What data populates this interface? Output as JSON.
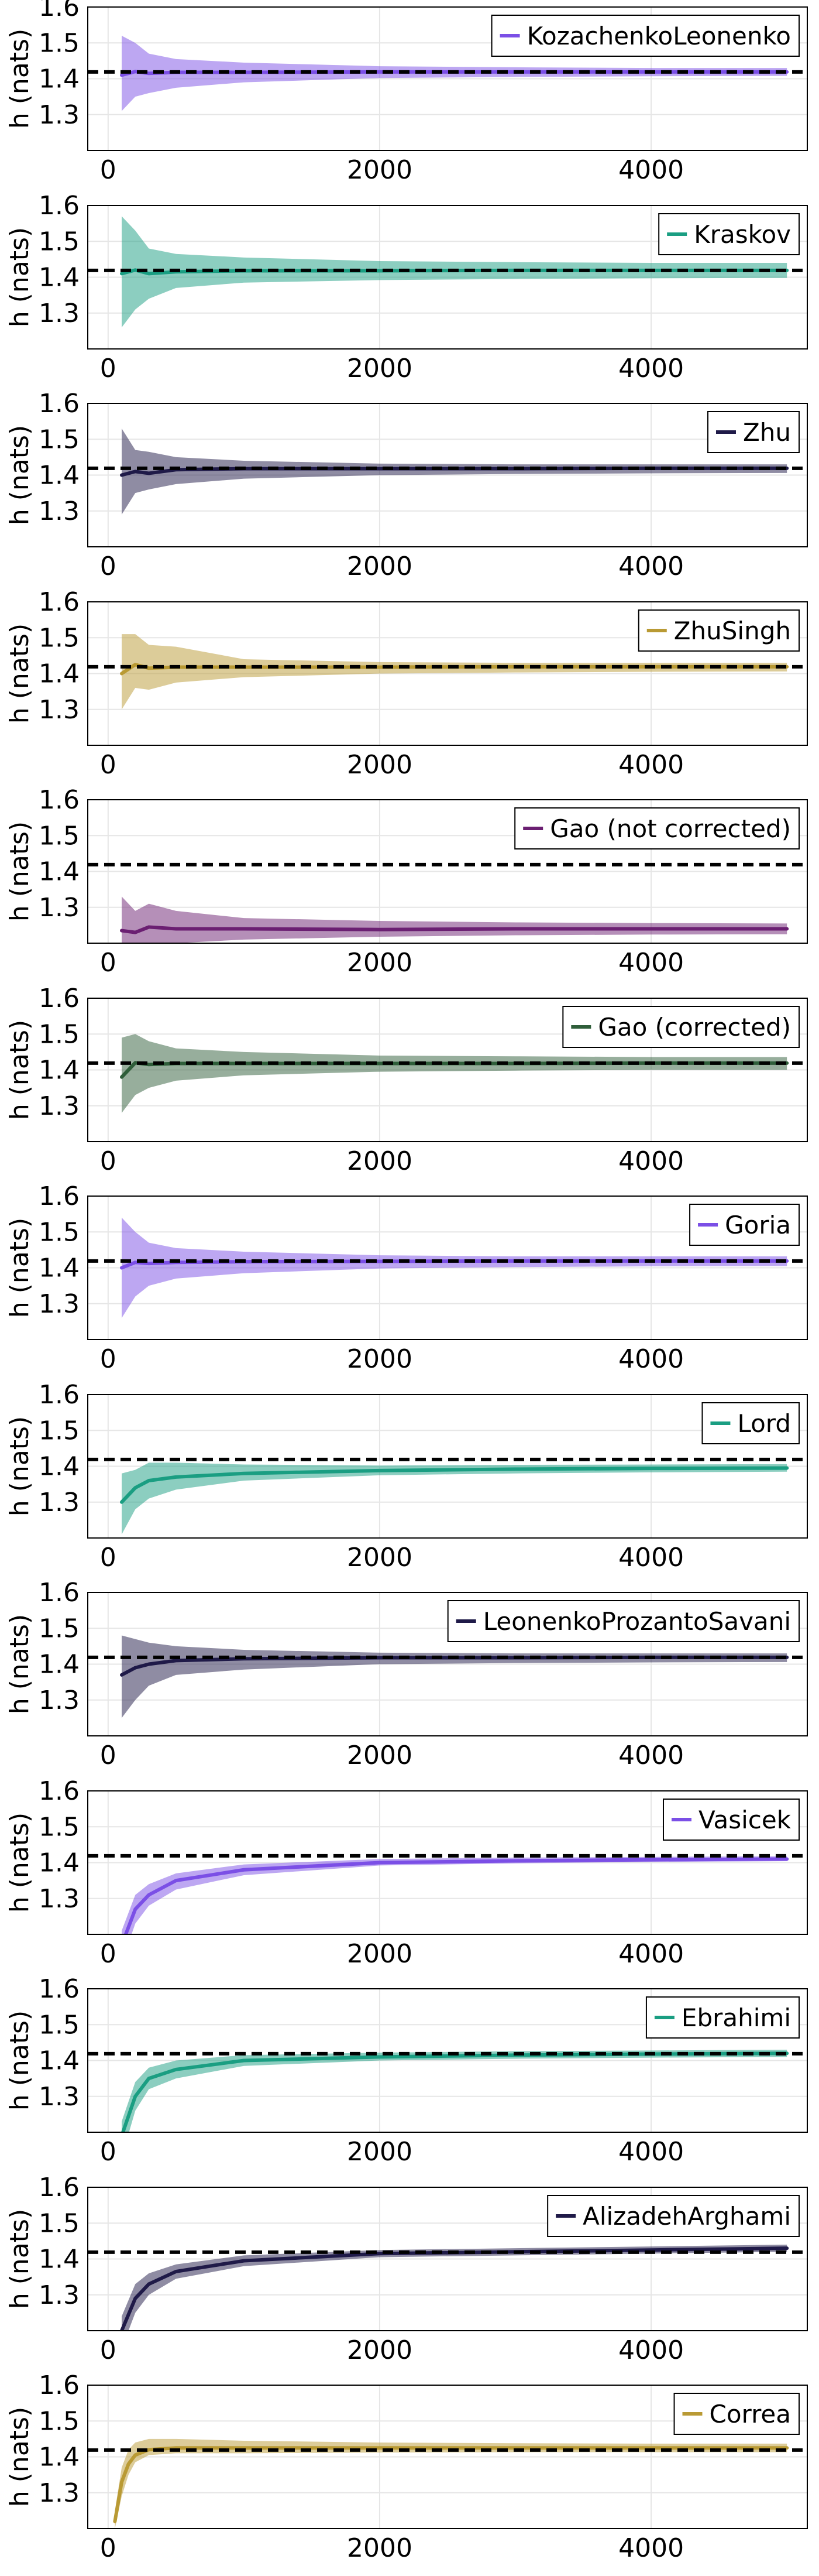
{
  "figure": {
    "ylabel": "h (nats)",
    "reference_line_value": 1.4189,
    "colors": {
      "purple": "#7b4fe6",
      "teal": "#1a9e82",
      "navy": "#1f1a48",
      "gold": "#b99a34",
      "plum": "#6b1f72",
      "green": "#2f5e3a"
    }
  },
  "chart_data": [
    {
      "type": "line",
      "name": "KozachenkoLeonenko",
      "color": "#7b4fe6",
      "ylim": [
        1.2,
        1.6
      ],
      "xlim": [
        -150,
        5150
      ],
      "xticks": [
        0,
        2000,
        4000
      ],
      "yticks": [
        1.3,
        1.4,
        1.5,
        1.6
      ],
      "reference": 1.4189,
      "x": [
        100,
        200,
        300,
        500,
        1000,
        2000,
        3000,
        4000,
        5000
      ],
      "mean": [
        1.41,
        1.42,
        1.415,
        1.418,
        1.418,
        1.419,
        1.419,
        1.419,
        1.419
      ],
      "lower": [
        1.31,
        1.35,
        1.36,
        1.375,
        1.39,
        1.402,
        1.405,
        1.407,
        1.408
      ],
      "upper": [
        1.52,
        1.5,
        1.47,
        1.455,
        1.445,
        1.435,
        1.432,
        1.43,
        1.43
      ]
    },
    {
      "type": "line",
      "name": "Kraskov",
      "color": "#1a9e82",
      "ylim": [
        1.2,
        1.6
      ],
      "xlim": [
        -150,
        5150
      ],
      "xticks": [
        0,
        2000,
        4000
      ],
      "yticks": [
        1.3,
        1.4,
        1.5,
        1.6
      ],
      "reference": 1.4189,
      "x": [
        100,
        200,
        300,
        500,
        1000,
        2000,
        3000,
        4000,
        5000
      ],
      "mean": [
        1.41,
        1.42,
        1.41,
        1.415,
        1.418,
        1.418,
        1.419,
        1.419,
        1.419
      ],
      "lower": [
        1.26,
        1.31,
        1.34,
        1.37,
        1.385,
        1.392,
        1.395,
        1.397,
        1.398
      ],
      "upper": [
        1.57,
        1.53,
        1.48,
        1.465,
        1.455,
        1.445,
        1.442,
        1.44,
        1.44
      ]
    },
    {
      "type": "line",
      "name": "Zhu",
      "color": "#1f1a48",
      "ylim": [
        1.2,
        1.6
      ],
      "xlim": [
        -150,
        5150
      ],
      "xticks": [
        0,
        2000,
        4000
      ],
      "yticks": [
        1.3,
        1.4,
        1.5,
        1.6
      ],
      "reference": 1.4189,
      "x": [
        100,
        200,
        300,
        500,
        1000,
        2000,
        3000,
        4000,
        5000
      ],
      "mean": [
        1.4,
        1.41,
        1.405,
        1.415,
        1.418,
        1.418,
        1.418,
        1.419,
        1.419
      ],
      "lower": [
        1.29,
        1.35,
        1.36,
        1.375,
        1.39,
        1.4,
        1.403,
        1.405,
        1.406
      ],
      "upper": [
        1.53,
        1.47,
        1.465,
        1.45,
        1.44,
        1.432,
        1.43,
        1.43,
        1.43
      ]
    },
    {
      "type": "line",
      "name": "ZhuSingh",
      "color": "#b99a34",
      "ylim": [
        1.2,
        1.6
      ],
      "xlim": [
        -150,
        5150
      ],
      "xticks": [
        0,
        2000,
        4000
      ],
      "yticks": [
        1.3,
        1.4,
        1.5,
        1.6
      ],
      "reference": 1.4189,
      "x": [
        100,
        200,
        300,
        500,
        1000,
        2000,
        3000,
        4000,
        5000
      ],
      "mean": [
        1.4,
        1.425,
        1.415,
        1.418,
        1.418,
        1.418,
        1.419,
        1.419,
        1.419
      ],
      "lower": [
        1.3,
        1.36,
        1.355,
        1.375,
        1.39,
        1.4,
        1.403,
        1.405,
        1.406
      ],
      "upper": [
        1.51,
        1.51,
        1.48,
        1.475,
        1.44,
        1.432,
        1.43,
        1.43,
        1.43
      ]
    },
    {
      "type": "line",
      "name": "Gao (not corrected)",
      "color": "#6b1f72",
      "ylim": [
        1.2,
        1.6
      ],
      "xlim": [
        -150,
        5150
      ],
      "xticks": [
        0,
        2000,
        4000
      ],
      "yticks": [
        1.3,
        1.4,
        1.5,
        1.6
      ],
      "reference": 1.4189,
      "x": [
        100,
        200,
        300,
        500,
        1000,
        2000,
        3000,
        4000,
        5000
      ],
      "mean": [
        1.235,
        1.23,
        1.245,
        1.24,
        1.24,
        1.238,
        1.24,
        1.24,
        1.24
      ],
      "lower": [
        1.17,
        1.18,
        1.19,
        1.2,
        1.21,
        1.218,
        1.222,
        1.224,
        1.225
      ],
      "upper": [
        1.33,
        1.29,
        1.31,
        1.29,
        1.27,
        1.262,
        1.258,
        1.256,
        1.255
      ]
    },
    {
      "type": "line",
      "name": "Gao (corrected)",
      "color": "#2f5e3a",
      "ylim": [
        1.2,
        1.6
      ],
      "xlim": [
        -150,
        5150
      ],
      "xticks": [
        0,
        2000,
        4000
      ],
      "yticks": [
        1.3,
        1.4,
        1.5,
        1.6
      ],
      "reference": 1.4189,
      "x": [
        100,
        200,
        300,
        500,
        1000,
        2000,
        3000,
        4000,
        5000
      ],
      "mean": [
        1.38,
        1.42,
        1.415,
        1.418,
        1.418,
        1.418,
        1.418,
        1.419,
        1.419
      ],
      "lower": [
        1.28,
        1.33,
        1.35,
        1.37,
        1.385,
        1.395,
        1.398,
        1.4,
        1.4
      ],
      "upper": [
        1.49,
        1.5,
        1.48,
        1.46,
        1.45,
        1.44,
        1.438,
        1.436,
        1.436
      ]
    },
    {
      "type": "line",
      "name": "Goria",
      "color": "#7b4fe6",
      "ylim": [
        1.2,
        1.6
      ],
      "xlim": [
        -150,
        5150
      ],
      "xticks": [
        0,
        2000,
        4000
      ],
      "yticks": [
        1.3,
        1.4,
        1.5,
        1.6
      ],
      "reference": 1.4189,
      "x": [
        100,
        200,
        300,
        500,
        1000,
        2000,
        3000,
        4000,
        5000
      ],
      "mean": [
        1.4,
        1.415,
        1.412,
        1.415,
        1.417,
        1.418,
        1.419,
        1.419,
        1.419
      ],
      "lower": [
        1.26,
        1.32,
        1.35,
        1.37,
        1.385,
        1.398,
        1.402,
        1.404,
        1.405
      ],
      "upper": [
        1.54,
        1.5,
        1.47,
        1.455,
        1.445,
        1.435,
        1.432,
        1.432,
        1.432
      ]
    },
    {
      "type": "line",
      "name": "Lord",
      "color": "#1a9e82",
      "ylim": [
        1.2,
        1.6
      ],
      "xlim": [
        -150,
        5150
      ],
      "xticks": [
        0,
        2000,
        4000
      ],
      "yticks": [
        1.3,
        1.4,
        1.5,
        1.6
      ],
      "reference": 1.4189,
      "x": [
        100,
        200,
        300,
        500,
        1000,
        2000,
        3000,
        4000,
        5000
      ],
      "mean": [
        1.3,
        1.34,
        1.36,
        1.37,
        1.38,
        1.388,
        1.392,
        1.394,
        1.395
      ],
      "lower": [
        1.21,
        1.28,
        1.31,
        1.335,
        1.36,
        1.375,
        1.38,
        1.383,
        1.385
      ],
      "upper": [
        1.38,
        1.39,
        1.41,
        1.41,
        1.405,
        1.402,
        1.404,
        1.405,
        1.406
      ]
    },
    {
      "type": "line",
      "name": "LeonenkoProzantoSavani",
      "color": "#1f1a48",
      "ylim": [
        1.2,
        1.6
      ],
      "xlim": [
        -150,
        5150
      ],
      "xticks": [
        0,
        2000,
        4000
      ],
      "yticks": [
        1.3,
        1.4,
        1.5,
        1.6
      ],
      "reference": 1.4189,
      "x": [
        100,
        200,
        300,
        500,
        1000,
        2000,
        3000,
        4000,
        5000
      ],
      "mean": [
        1.37,
        1.39,
        1.4,
        1.41,
        1.415,
        1.418,
        1.418,
        1.419,
        1.419
      ],
      "lower": [
        1.25,
        1.3,
        1.34,
        1.37,
        1.385,
        1.4,
        1.403,
        1.405,
        1.406
      ],
      "upper": [
        1.48,
        1.47,
        1.46,
        1.45,
        1.44,
        1.432,
        1.43,
        1.43,
        1.43
      ]
    },
    {
      "type": "line",
      "name": "Vasicek",
      "color": "#7b4fe6",
      "ylim": [
        1.2,
        1.6
      ],
      "xlim": [
        -150,
        5150
      ],
      "xticks": [
        0,
        2000,
        4000
      ],
      "yticks": [
        1.3,
        1.4,
        1.5,
        1.6
      ],
      "reference": 1.4189,
      "x": [
        100,
        200,
        300,
        500,
        1000,
        2000,
        3000,
        4000,
        5000
      ],
      "mean": [
        1.17,
        1.27,
        1.31,
        1.35,
        1.38,
        1.4,
        1.405,
        1.408,
        1.41
      ],
      "lower": [
        1.12,
        1.23,
        1.28,
        1.325,
        1.365,
        1.392,
        1.398,
        1.402,
        1.404
      ],
      "upper": [
        1.21,
        1.31,
        1.34,
        1.37,
        1.395,
        1.41,
        1.414,
        1.416,
        1.418
      ]
    },
    {
      "type": "line",
      "name": "Ebrahimi",
      "color": "#1a9e82",
      "ylim": [
        1.2,
        1.6
      ],
      "xlim": [
        -150,
        5150
      ],
      "xticks": [
        0,
        2000,
        4000
      ],
      "yticks": [
        1.3,
        1.4,
        1.5,
        1.6
      ],
      "reference": 1.4189,
      "x": [
        100,
        200,
        300,
        500,
        1000,
        2000,
        3000,
        4000,
        5000
      ],
      "mean": [
        1.19,
        1.3,
        1.35,
        1.375,
        1.4,
        1.41,
        1.415,
        1.418,
        1.42
      ],
      "lower": [
        1.13,
        1.26,
        1.32,
        1.35,
        1.385,
        1.4,
        1.405,
        1.408,
        1.41
      ],
      "upper": [
        1.23,
        1.34,
        1.38,
        1.4,
        1.415,
        1.422,
        1.426,
        1.428,
        1.43
      ]
    },
    {
      "type": "line",
      "name": "AlizadehArghami",
      "color": "#1f1a48",
      "ylim": [
        1.2,
        1.6
      ],
      "xlim": [
        -150,
        5150
      ],
      "xticks": [
        0,
        2000,
        4000
      ],
      "yticks": [
        1.3,
        1.4,
        1.5,
        1.6
      ],
      "reference": 1.4189,
      "x": [
        100,
        200,
        300,
        500,
        1000,
        2000,
        3000,
        4000,
        5000
      ],
      "mean": [
        1.2,
        1.29,
        1.33,
        1.365,
        1.395,
        1.415,
        1.42,
        1.425,
        1.43
      ],
      "lower": [
        1.15,
        1.25,
        1.3,
        1.345,
        1.38,
        1.405,
        1.41,
        1.415,
        1.42
      ],
      "upper": [
        1.24,
        1.33,
        1.36,
        1.385,
        1.41,
        1.425,
        1.43,
        1.435,
        1.44
      ]
    },
    {
      "type": "line",
      "name": "Correa",
      "color": "#b99a34",
      "ylim": [
        1.2,
        1.6
      ],
      "xlim": [
        -150,
        5150
      ],
      "xticks": [
        0,
        2000,
        4000
      ],
      "yticks": [
        1.3,
        1.4,
        1.5,
        1.6
      ],
      "reference": 1.4189,
      "x": [
        50,
        100,
        150,
        200,
        300,
        500,
        1000,
        2000,
        3000,
        4000,
        5000
      ],
      "mean": [
        1.22,
        1.33,
        1.38,
        1.405,
        1.42,
        1.425,
        1.425,
        1.425,
        1.425,
        1.425,
        1.425
      ],
      "lower": [
        1.2,
        1.29,
        1.35,
        1.385,
        1.405,
        1.41,
        1.41,
        1.412,
        1.413,
        1.413,
        1.413
      ],
      "upper": [
        1.25,
        1.37,
        1.42,
        1.44,
        1.45,
        1.45,
        1.445,
        1.44,
        1.438,
        1.437,
        1.437
      ]
    }
  ]
}
